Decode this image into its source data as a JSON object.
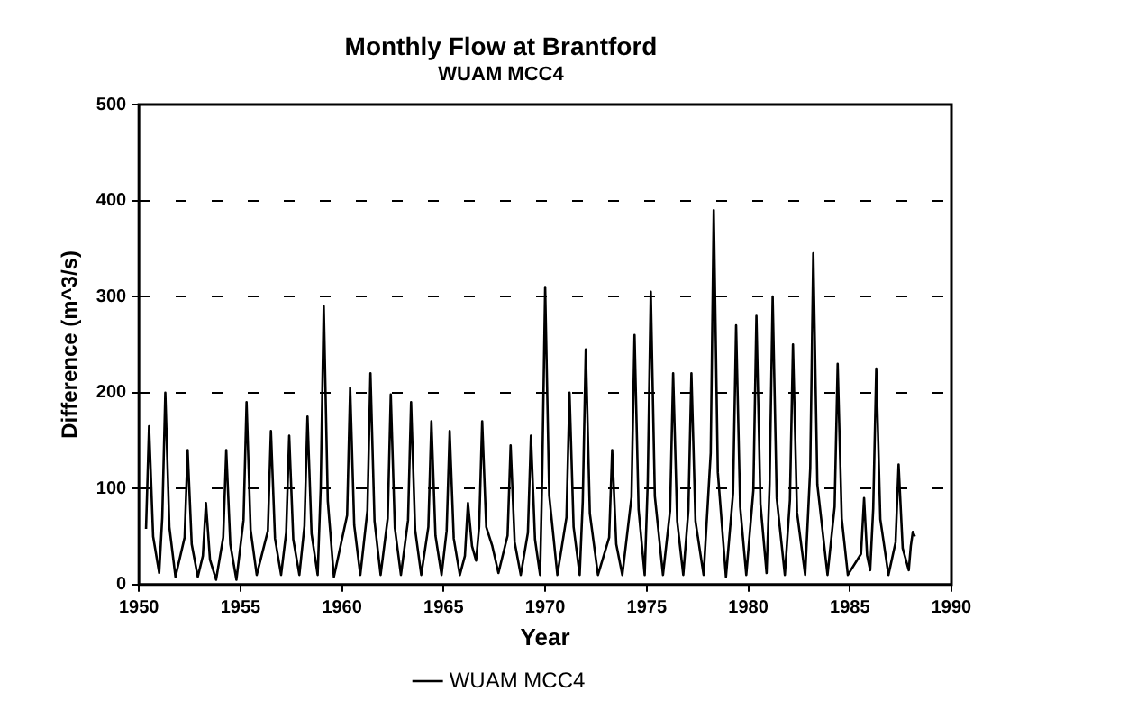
{
  "chart_data": {
    "type": "line",
    "title": "Monthly Flow at Brantford",
    "subtitle": "WUAM MCC4",
    "xlabel": "Year",
    "ylabel": "Difference (m^3/s)",
    "xlim": [
      1950,
      1990
    ],
    "xticks": [
      1950,
      1955,
      1960,
      1965,
      1970,
      1975,
      1980,
      1985,
      1990
    ],
    "ylim": [
      0,
      500
    ],
    "yticks": [
      0,
      100,
      200,
      300,
      400,
      500
    ],
    "grid": "y",
    "legend": "bottom",
    "line_style": "solid",
    "x": [
      1950.35,
      1950.5,
      1950.7,
      1951.0,
      1951.15,
      1951.3,
      1951.5,
      1951.8,
      1952.25,
      1952.4,
      1952.6,
      1952.9,
      1953.15,
      1953.3,
      1953.5,
      1953.8,
      1954.15,
      1954.3,
      1954.5,
      1954.8,
      1955.15,
      1955.3,
      1955.5,
      1955.8,
      1956.35,
      1956.5,
      1956.7,
      1957.0,
      1957.25,
      1957.4,
      1957.6,
      1957.9,
      1958.15,
      1958.3,
      1958.5,
      1958.8,
      1958.95,
      1959.1,
      1959.3,
      1959.6,
      1960.25,
      1960.4,
      1960.6,
      1960.9,
      1961.25,
      1961.4,
      1961.6,
      1961.9,
      1962.25,
      1962.4,
      1962.6,
      1962.9,
      1963.25,
      1963.4,
      1963.6,
      1963.9,
      1964.25,
      1964.4,
      1964.6,
      1964.9,
      1965.15,
      1965.3,
      1965.5,
      1965.8,
      1966.05,
      1966.2,
      1966.4,
      1966.6,
      1966.75,
      1966.9,
      1967.1,
      1967.4,
      1967.7,
      1968.15,
      1968.3,
      1968.5,
      1968.8,
      1969.15,
      1969.3,
      1969.5,
      1969.75,
      1969.85,
      1970.0,
      1970.2,
      1970.6,
      1971.05,
      1971.2,
      1971.4,
      1971.7,
      1971.85,
      1972.0,
      1972.2,
      1972.6,
      1973.15,
      1973.3,
      1973.5,
      1973.8,
      1974.25,
      1974.4,
      1974.6,
      1974.9,
      1975.05,
      1975.2,
      1975.4,
      1975.8,
      1976.15,
      1976.3,
      1976.5,
      1976.8,
      1977.05,
      1977.2,
      1977.4,
      1977.8,
      1978.15,
      1978.3,
      1978.5,
      1978.9,
      1979.25,
      1979.4,
      1979.6,
      1979.9,
      1980.25,
      1980.4,
      1980.6,
      1980.9,
      1981.05,
      1981.2,
      1981.4,
      1981.8,
      1982.05,
      1982.2,
      1982.4,
      1982.8,
      1983.05,
      1983.2,
      1983.4,
      1983.9,
      1984.25,
      1984.4,
      1984.6,
      1984.9,
      1985.55,
      1985.7,
      1985.85,
      1986.0,
      1986.15,
      1986.3,
      1986.5,
      1986.9,
      1987.25,
      1987.4,
      1987.6,
      1987.9,
      1988.0,
      1988.1,
      1988.2
    ],
    "series": [
      {
        "name": "WUAM MCC4",
        "color": "#000000",
        "values": [
          58,
          165,
          50,
          12,
          70,
          200,
          60,
          8,
          49,
          140,
          42,
          8,
          30,
          85,
          26,
          5,
          49,
          140,
          42,
          5,
          67,
          190,
          57,
          10,
          56,
          160,
          48,
          10,
          54,
          155,
          47,
          10,
          61,
          175,
          53,
          10,
          100,
          290,
          87,
          8,
          72,
          205,
          62,
          10,
          77,
          220,
          66,
          10,
          69,
          198,
          59,
          10,
          67,
          190,
          57,
          10,
          60,
          170,
          51,
          10,
          56,
          160,
          48,
          10,
          30,
          85,
          40,
          25,
          60,
          170,
          60,
          40,
          12,
          51,
          145,
          44,
          10,
          54,
          155,
          47,
          10,
          108,
          310,
          93,
          10,
          70,
          200,
          60,
          10,
          86,
          245,
          74,
          10,
          49,
          140,
          42,
          10,
          91,
          260,
          78,
          10,
          107,
          305,
          92,
          10,
          77,
          220,
          66,
          10,
          77,
          220,
          66,
          10,
          137,
          390,
          117,
          8,
          95,
          270,
          81,
          10,
          98,
          280,
          84,
          12,
          105,
          300,
          90,
          10,
          88,
          250,
          75,
          10,
          121,
          345,
          104,
          10,
          81,
          230,
          69,
          10,
          32,
          90,
          30,
          15,
          79,
          225,
          68,
          10,
          44,
          125,
          38,
          15,
          40,
          55,
          50
        ]
      }
    ]
  }
}
